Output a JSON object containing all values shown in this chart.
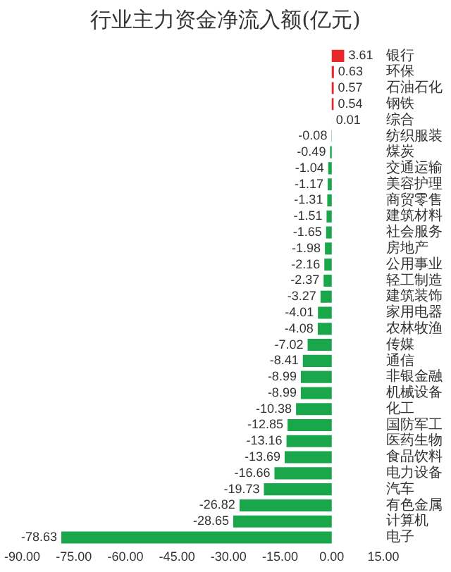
{
  "chart_data": {
    "type": "bar",
    "orientation": "horizontal",
    "title": "行业主力资金净流入额(亿元)",
    "categories": [
      "银行",
      "环保",
      "石油石化",
      "钢铁",
      "综合",
      "纺织服装",
      "煤炭",
      "交通运输",
      "美容护理",
      "商贸零售",
      "建筑材料",
      "社会服务",
      "房地产",
      "公用事业",
      "轻工制造",
      "建筑装饰",
      "家用电器",
      "农林牧渔",
      "传媒",
      "通信",
      "非银金融",
      "机械设备",
      "化工",
      "国防军工",
      "医药生物",
      "食品饮料",
      "电力设备",
      "汽车",
      "有色金属",
      "计算机",
      "电子"
    ],
    "values": [
      3.61,
      0.63,
      0.57,
      0.54,
      0.01,
      -0.08,
      -0.49,
      -1.04,
      -1.17,
      -1.31,
      -1.51,
      -1.65,
      -1.98,
      -2.16,
      -2.37,
      -3.27,
      -4.01,
      -4.08,
      -7.02,
      -8.41,
      -8.99,
      -8.99,
      -10.38,
      -12.85,
      -13.16,
      -13.69,
      -16.66,
      -19.73,
      -26.82,
      -28.65,
      -78.63
    ],
    "colors": [
      "#e8262a",
      "#e8262a",
      "#e8262a",
      "#e8262a",
      "#e8262a",
      "#1aa64a",
      "#1aa64a",
      "#1aa64a",
      "#1aa64a",
      "#1aa64a",
      "#1aa64a",
      "#1aa64a",
      "#1aa64a",
      "#1aa64a",
      "#1aa64a",
      "#1aa64a",
      "#1aa64a",
      "#1aa64a",
      "#1aa64a",
      "#1aa64a",
      "#1aa64a",
      "#1aa64a",
      "#1aa64a",
      "#1aa64a",
      "#1aa64a",
      "#1aa64a",
      "#1aa64a",
      "#1aa64a",
      "#1aa64a",
      "#1aa64a",
      "#1aa64a"
    ],
    "data_labels": true,
    "grid": false,
    "legend": false,
    "xlim": [
      -90,
      15
    ],
    "xticks": [
      {
        "value": -90,
        "label": "-90.00"
      },
      {
        "value": -75,
        "label": "-75.00"
      },
      {
        "value": -60,
        "label": "-60.00"
      },
      {
        "value": -45,
        "label": "-45.00"
      },
      {
        "value": -30,
        "label": "-30.00"
      },
      {
        "value": -15,
        "label": "-15.00"
      },
      {
        "value": 0,
        "label": "0.00"
      },
      {
        "value": 15,
        "label": "15.00"
      }
    ]
  }
}
